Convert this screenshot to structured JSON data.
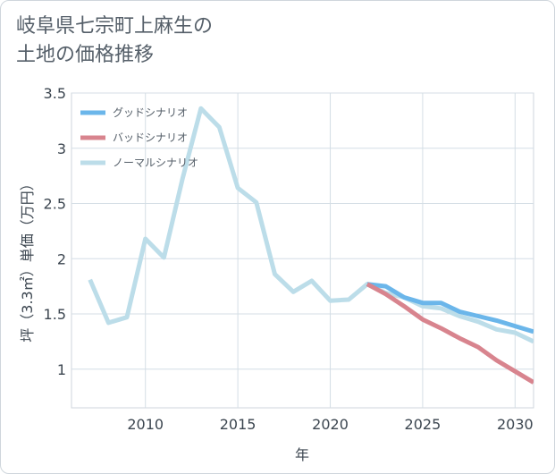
{
  "chart_data": {
    "type": "line",
    "title": "岐阜県七宗町上麻生の\n土地の価格推移",
    "title_lines": [
      "岐阜県七宗町上麻生の",
      "土地の価格推移"
    ],
    "xlabel": "年",
    "ylabel": "坪（3.3㎡）単価（万円）",
    "xlim": [
      2006,
      2031
    ],
    "ylim": [
      0.65,
      3.5
    ],
    "x_ticks": [
      2010,
      2015,
      2020,
      2025,
      2030
    ],
    "y_ticks": [
      1,
      1.5,
      2,
      2.5,
      3,
      3.5
    ],
    "x_tick_labels": [
      "2010",
      "2015",
      "2020",
      "2025",
      "2030"
    ],
    "y_tick_labels": [
      "1",
      "1.5",
      "2",
      "2.5",
      "3",
      "3.5"
    ],
    "grid": true,
    "legend_position": "top-left",
    "series": [
      {
        "name": "グッドシナリオ",
        "color": "#6bb6ea",
        "x": [
          2022,
          2023,
          2024,
          2025,
          2026,
          2027,
          2028,
          2029,
          2030,
          2031
        ],
        "values": [
          1.77,
          1.75,
          1.65,
          1.6,
          1.6,
          1.52,
          1.48,
          1.44,
          1.39,
          1.34
        ]
      },
      {
        "name": "バッドシナリオ",
        "color": "#d8848e",
        "x": [
          2022,
          2023,
          2024,
          2025,
          2026,
          2027,
          2028,
          2029,
          2030,
          2031
        ],
        "values": [
          1.77,
          1.68,
          1.57,
          1.45,
          1.37,
          1.28,
          1.2,
          1.08,
          0.98,
          0.88
        ]
      },
      {
        "name": "ノーマルシナリオ",
        "color": "#bcdde9",
        "x": [
          2007,
          2008,
          2009,
          2010,
          2011,
          2012,
          2013,
          2014,
          2015,
          2016,
          2017,
          2018,
          2019,
          2020,
          2021,
          2022,
          2023,
          2024,
          2025,
          2026,
          2027,
          2028,
          2029,
          2030,
          2031
        ],
        "values": [
          1.81,
          1.42,
          1.47,
          2.18,
          2.01,
          2.72,
          3.36,
          3.19,
          2.64,
          2.51,
          1.86,
          1.7,
          1.8,
          1.62,
          1.63,
          1.77,
          1.69,
          1.65,
          1.57,
          1.55,
          1.48,
          1.43,
          1.36,
          1.33,
          1.25
        ]
      }
    ]
  }
}
